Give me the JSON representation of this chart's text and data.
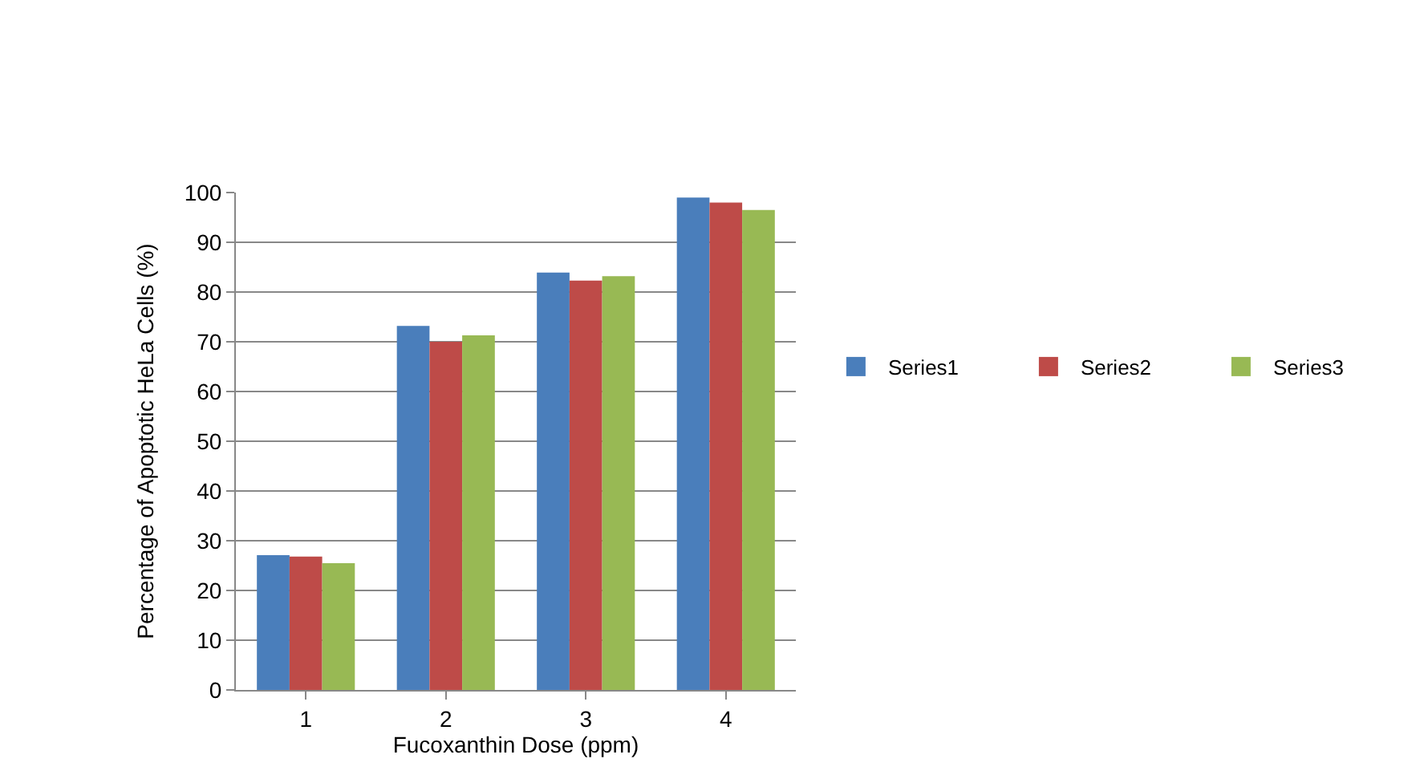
{
  "chart_data": {
    "type": "bar",
    "xlabel": "Fucoxanthin Dose (ppm)",
    "ylabel": "Percentage of Apoptotic HeLa Cells (%)",
    "categories": [
      "1",
      "2",
      "3",
      "4"
    ],
    "series": [
      {
        "name": "Series1",
        "color": "#4a7ebb",
        "values": [
          27.1,
          73.2,
          83.9,
          99.0
        ]
      },
      {
        "name": "Series2",
        "color": "#be4b48",
        "values": [
          26.8,
          70.0,
          82.3,
          98.0
        ]
      },
      {
        "name": "Series3",
        "color": "#98b954",
        "values": [
          25.5,
          71.3,
          83.2,
          96.5
        ]
      }
    ],
    "ylim": [
      0,
      100
    ],
    "yticks": [
      0,
      10,
      20,
      30,
      40,
      50,
      60,
      70,
      80,
      90,
      100
    ],
    "grid": "y",
    "legend": "right"
  }
}
